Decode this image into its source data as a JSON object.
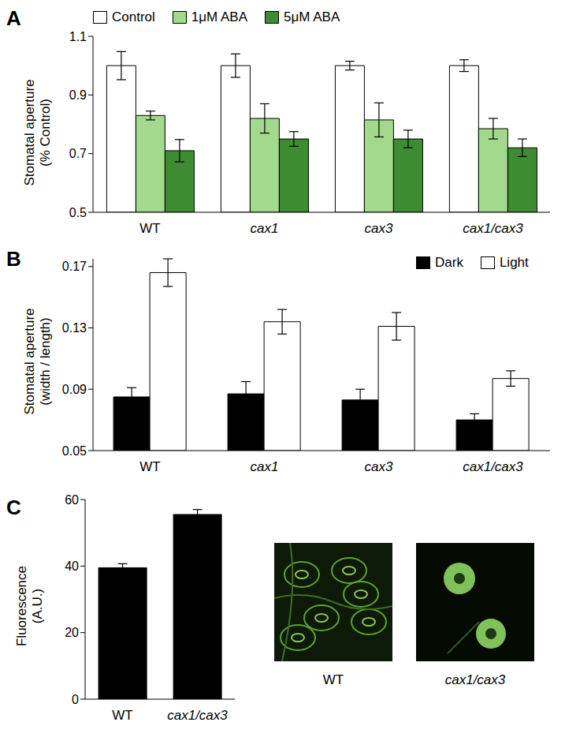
{
  "chart_data": [
    {
      "panel": "A",
      "type": "bar",
      "ylabel": "Stomatal aperture (% Control)",
      "categories": [
        "WT",
        "cax1",
        "cax3",
        "cax1/cax3"
      ],
      "series": [
        {
          "name": "Control",
          "color": "#ffffff",
          "values": [
            1.0,
            1.0,
            1.0,
            1.0
          ],
          "errors": [
            0.048,
            0.04,
            0.015,
            0.02
          ]
        },
        {
          "name": "1μM ABA",
          "color": "#a3d98c",
          "values": [
            0.83,
            0.82,
            0.815,
            0.785
          ],
          "errors": [
            0.015,
            0.05,
            0.058,
            0.035
          ]
        },
        {
          "name": "5μM ABA",
          "color": "#3d8c32",
          "values": [
            0.71,
            0.75,
            0.75,
            0.72
          ],
          "errors": [
            0.038,
            0.025,
            0.03,
            0.03
          ]
        }
      ],
      "ylim": [
        0.5,
        1.1
      ],
      "yticks": [
        0.5,
        0.7,
        0.9,
        1.1
      ],
      "legend": "top"
    },
    {
      "panel": "B",
      "type": "bar",
      "ylabel": "Stomatal aperture (width / length)",
      "categories": [
        "WT",
        "cax1",
        "cax3",
        "cax1/cax3"
      ],
      "series": [
        {
          "name": "Dark",
          "color": "#000000",
          "values": [
            0.085,
            0.087,
            0.083,
            0.07
          ],
          "errors": [
            0.006,
            0.008,
            0.007,
            0.004
          ]
        },
        {
          "name": "Light",
          "color": "#ffffff",
          "values": [
            0.166,
            0.134,
            0.131,
            0.097
          ],
          "errors": [
            0.009,
            0.008,
            0.009,
            0.005
          ]
        }
      ],
      "ylim": [
        0.05,
        0.175
      ],
      "yticks": [
        0.05,
        0.09,
        0.13,
        0.17
      ],
      "legend": "upper right"
    },
    {
      "panel": "C",
      "type": "bar",
      "ylabel": "Fluorescence (A.U.)",
      "categories": [
        "WT",
        "cax1/cax3"
      ],
      "series": [
        {
          "name": "Fluorescence",
          "color": "#000000",
          "values": [
            39.5,
            55.5
          ],
          "errors": [
            1.2,
            1.5
          ]
        }
      ],
      "ylim": [
        0,
        60
      ],
      "yticks": [
        0,
        20,
        40,
        60
      ],
      "image_labels": [
        "WT",
        "cax1/cax3"
      ]
    }
  ]
}
